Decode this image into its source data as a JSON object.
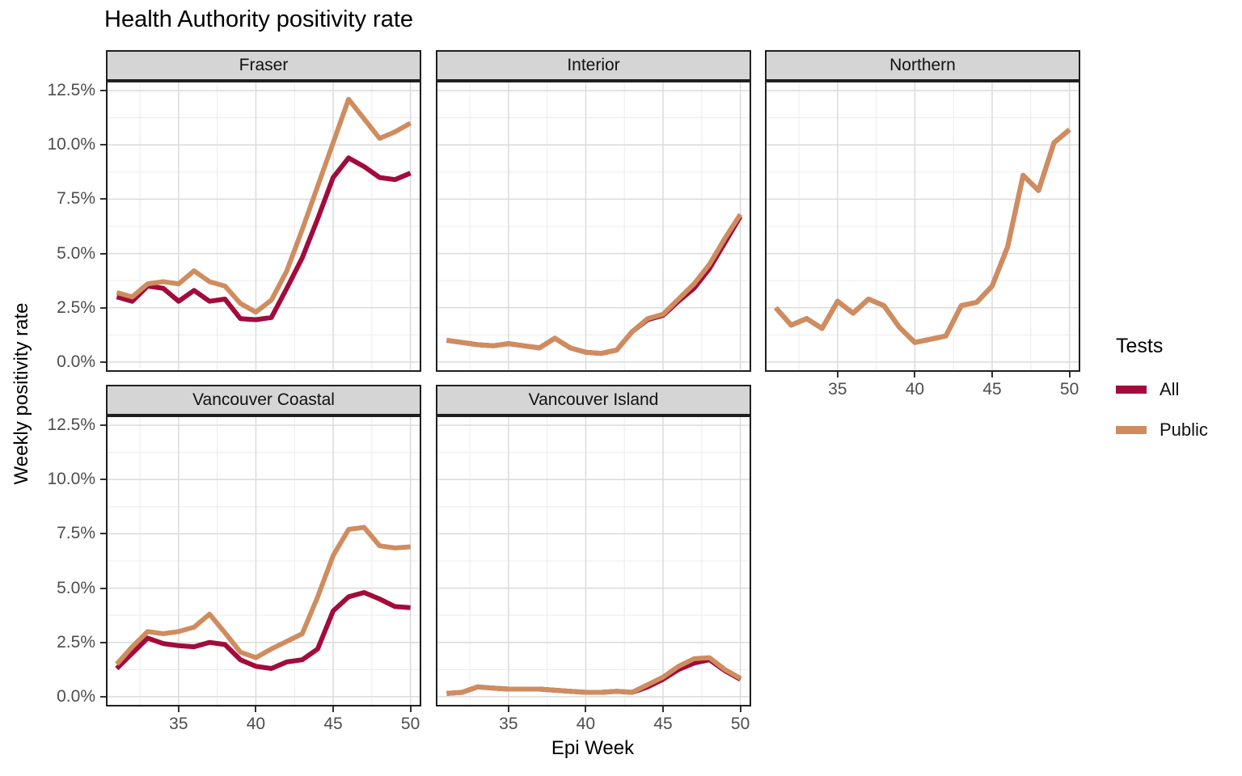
{
  "title": "Health Authority positivity rate",
  "axes": {
    "x_label": "Epi Week",
    "y_label": "Weekly positivity rate"
  },
  "legend": {
    "title": "Tests",
    "items": [
      {
        "label": "All",
        "color": "#A20B3B"
      },
      {
        "label": "Public",
        "color": "#CF8C5E"
      }
    ]
  },
  "chart_data": {
    "type": "line",
    "title": "Health Authority positivity rate",
    "xlabel": "Epi Week",
    "ylabel": "Weekly positivity rate",
    "x": [
      31,
      32,
      33,
      34,
      35,
      36,
      37,
      38,
      39,
      40,
      41,
      42,
      43,
      44,
      45,
      46,
      47,
      48,
      49,
      50
    ],
    "xlim": [
      30.3,
      50.7
    ],
    "ylim": [
      -0.45,
      12.95
    ],
    "x_major": [
      35,
      40,
      45,
      50
    ],
    "x_tick_labels": [
      "35",
      "40",
      "45",
      "50"
    ],
    "x_minor": [
      32.5,
      37.5,
      42.5,
      47.5
    ],
    "y_major": [
      0,
      2.5,
      5,
      7.5,
      10,
      12.5
    ],
    "y_tick_labels": [
      "0.0%",
      "2.5%",
      "5.0%",
      "7.5%",
      "10.0%",
      "12.5%"
    ],
    "y_minor": [
      1.25,
      3.75,
      6.25,
      8.75,
      11.25
    ],
    "grid": true,
    "legend_position": "right",
    "facets": [
      {
        "name": "Fraser",
        "row": 0,
        "col": 0,
        "axis_y": true,
        "axis_x": false,
        "series": [
          {
            "name": "All",
            "values": [
              3.0,
              2.8,
              3.5,
              3.4,
              2.8,
              3.3,
              2.8,
              2.9,
              2.0,
              1.95,
              2.05,
              3.4,
              4.8,
              6.6,
              8.5,
              9.4,
              9.0,
              8.5,
              8.4,
              8.7
            ]
          },
          {
            "name": "Public",
            "values": [
              3.2,
              3.0,
              3.6,
              3.7,
              3.6,
              4.2,
              3.7,
              3.5,
              2.7,
              2.3,
              2.85,
              4.2,
              6.1,
              8.1,
              10.1,
              12.1,
              11.2,
              10.3,
              10.6,
              11.0
            ]
          }
        ]
      },
      {
        "name": "Interior",
        "row": 0,
        "col": 1,
        "axis_y": false,
        "axis_x": false,
        "series": [
          {
            "name": "All",
            "values": [
              1.0,
              0.9,
              0.8,
              0.75,
              0.85,
              0.75,
              0.65,
              1.1,
              0.65,
              0.45,
              0.4,
              0.55,
              1.4,
              1.95,
              2.15,
              2.8,
              3.4,
              4.3,
              5.5,
              6.7
            ]
          },
          {
            "name": "Public",
            "values": [
              1.0,
              0.9,
              0.8,
              0.75,
              0.85,
              0.75,
              0.65,
              1.1,
              0.65,
              0.45,
              0.4,
              0.55,
              1.4,
              2.0,
              2.2,
              2.9,
              3.6,
              4.5,
              5.7,
              6.8
            ]
          }
        ]
      },
      {
        "name": "Northern",
        "row": 0,
        "col": 2,
        "axis_y": false,
        "axis_x": true,
        "series": [
          {
            "name": "All",
            "values": [
              2.5,
              1.7,
              2.0,
              1.55,
              2.8,
              2.25,
              2.9,
              2.6,
              1.6,
              0.9,
              1.05,
              1.2,
              2.6,
              2.75,
              3.5,
              5.3,
              8.6,
              7.9,
              10.1,
              10.7
            ]
          },
          {
            "name": "Public",
            "values": [
              2.5,
              1.7,
              2.0,
              1.55,
              2.8,
              2.25,
              2.9,
              2.6,
              1.6,
              0.9,
              1.05,
              1.2,
              2.6,
              2.75,
              3.5,
              5.3,
              8.6,
              7.9,
              10.1,
              10.7
            ]
          }
        ]
      },
      {
        "name": "Vancouver Coastal",
        "row": 1,
        "col": 0,
        "axis_y": true,
        "axis_x": true,
        "series": [
          {
            "name": "All",
            "values": [
              1.3,
              2.0,
              2.7,
              2.45,
              2.35,
              2.3,
              2.5,
              2.4,
              1.7,
              1.4,
              1.3,
              1.6,
              1.7,
              2.2,
              3.95,
              4.6,
              4.8,
              4.5,
              4.15,
              4.1
            ]
          },
          {
            "name": "Public",
            "values": [
              1.5,
              2.3,
              3.0,
              2.9,
              3.0,
              3.2,
              3.8,
              2.95,
              2.05,
              1.8,
              2.2,
              2.55,
              2.9,
              4.6,
              6.5,
              7.7,
              7.8,
              6.95,
              6.85,
              6.9
            ]
          }
        ]
      },
      {
        "name": "Vancouver Island",
        "row": 1,
        "col": 1,
        "axis_y": false,
        "axis_x": true,
        "series": [
          {
            "name": "All",
            "values": [
              0.15,
              0.2,
              0.45,
              0.4,
              0.35,
              0.35,
              0.35,
              0.3,
              0.25,
              0.2,
              0.2,
              0.25,
              0.2,
              0.45,
              0.8,
              1.25,
              1.55,
              1.7,
              1.2,
              0.8
            ]
          },
          {
            "name": "Public",
            "values": [
              0.15,
              0.2,
              0.45,
              0.4,
              0.35,
              0.35,
              0.35,
              0.3,
              0.25,
              0.2,
              0.2,
              0.25,
              0.2,
              0.55,
              0.9,
              1.4,
              1.75,
              1.8,
              1.25,
              0.85
            ]
          }
        ]
      }
    ]
  }
}
